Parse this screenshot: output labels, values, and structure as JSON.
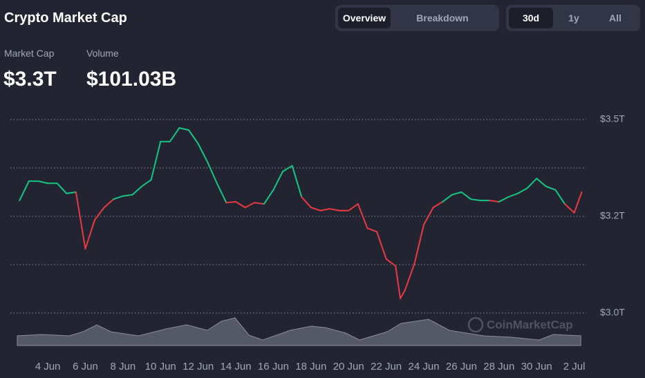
{
  "header": {
    "title": "Crypto Market Cap",
    "tabs": [
      "Overview",
      "Breakdown"
    ],
    "ranges": [
      "30d",
      "1y",
      "All"
    ],
    "stats": [
      {
        "label": "Market Cap",
        "value": "$3.3T"
      },
      {
        "label": "Volume",
        "value": "$101.03B"
      }
    ],
    "watermark": "CoinMarketCap"
  },
  "chart_data": {
    "type": "line",
    "x": [
      2.5,
      3,
      3.5,
      4,
      4.5,
      5,
      5.5,
      6,
      6.5,
      7,
      7.5,
      8,
      8.5,
      9,
      9.5,
      10,
      10.5,
      11,
      11.5,
      12,
      12.5,
      13,
      13.5,
      14,
      14.5,
      15,
      15.5,
      16,
      16.5,
      17,
      17.5,
      18,
      18.5,
      19,
      19.5,
      20,
      20.5,
      21,
      21.5,
      22,
      22.5,
      22.75,
      23,
      23.5,
      24,
      24.5,
      25,
      25.5,
      26,
      26.5,
      27,
      27.5,
      28,
      28.5,
      29,
      29.5,
      30,
      30.5,
      31,
      31.5,
      32,
      32.4
    ],
    "series": [
      {
        "values": [
          3.276,
          3.32,
          3.32,
          3.315,
          3.315,
          3.292,
          3.295,
          3.166,
          3.232,
          3.26,
          3.279,
          3.286,
          3.289,
          3.308,
          3.323,
          3.41,
          3.41,
          3.441,
          3.436,
          3.405,
          3.363,
          3.315,
          3.271,
          3.273,
          3.26,
          3.271,
          3.268,
          3.3,
          3.342,
          3.355,
          3.284,
          3.26,
          3.253,
          3.257,
          3.253,
          3.253,
          3.268,
          3.213,
          3.205,
          3.143,
          3.127,
          3.053,
          3.072,
          3.132,
          3.221,
          3.26,
          3.273,
          3.289,
          3.295,
          3.279,
          3.276,
          3.276,
          3.273,
          3.284,
          3.292,
          3.304,
          3.326,
          3.308,
          3.3,
          3.268,
          3.248,
          3.295
        ],
        "up_color": "#16c784",
        "down_color": "#ea3943"
      },
      {
        "axis": "y2",
        "color": "#5e6170",
        "x": [
          2.38,
          3.67,
          5.14,
          5.88,
          6.61,
          7.35,
          8.82,
          10.29,
          11.39,
          12.49,
          13.23,
          13.96,
          14.7,
          15.43,
          16.17,
          16.9,
          18.01,
          18.75,
          19.85,
          20.58,
          21.32,
          22.06,
          22.79,
          24.26,
          25.36,
          27.2,
          28.67,
          30.14,
          30.88,
          32.35
        ],
        "values": [
          70,
          80,
          70,
          100,
          150,
          100,
          70,
          120,
          150,
          110,
          175,
          200,
          75,
          40,
          75,
          110,
          140,
          130,
          90,
          40,
          70,
          100,
          160,
          190,
          110,
          70,
          60,
          40,
          80,
          70
        ]
      }
    ],
    "xlim": [
      2.38,
      32.4
    ],
    "xticks": [
      {
        "value": 4,
        "label": "4 Jun"
      },
      {
        "value": 6,
        "label": "6 Jun"
      },
      {
        "value": 8,
        "label": "8 Jun"
      },
      {
        "value": 10,
        "label": "10 Jun"
      },
      {
        "value": 12,
        "label": "12 Jun"
      },
      {
        "value": 14,
        "label": "14 Jun"
      },
      {
        "value": 16,
        "label": "16 Jun"
      },
      {
        "value": 18,
        "label": "18 Jun"
      },
      {
        "value": 20,
        "label": "20 Jun"
      },
      {
        "value": 22,
        "label": "22 Jun"
      },
      {
        "value": 24,
        "label": "24 Jun"
      },
      {
        "value": 26,
        "label": "26 Jun"
      },
      {
        "value": 28,
        "label": "28 Jun"
      },
      {
        "value": 30,
        "label": "30 Jun"
      },
      {
        "value": 32,
        "label": "2 Jul"
      }
    ],
    "ylim": [
      3.02,
      3.46
    ],
    "yticks": [
      {
        "value": 3.02,
        "label": "$3.0T"
      },
      {
        "value": 3.13,
        "label": null
      },
      {
        "value": 3.24,
        "label": "$3.2T"
      },
      {
        "value": 3.35,
        "label": null
      },
      {
        "value": 3.46,
        "label": "$3.5T"
      }
    ],
    "y2lim": [
      0,
      250
    ],
    "grid": true
  }
}
